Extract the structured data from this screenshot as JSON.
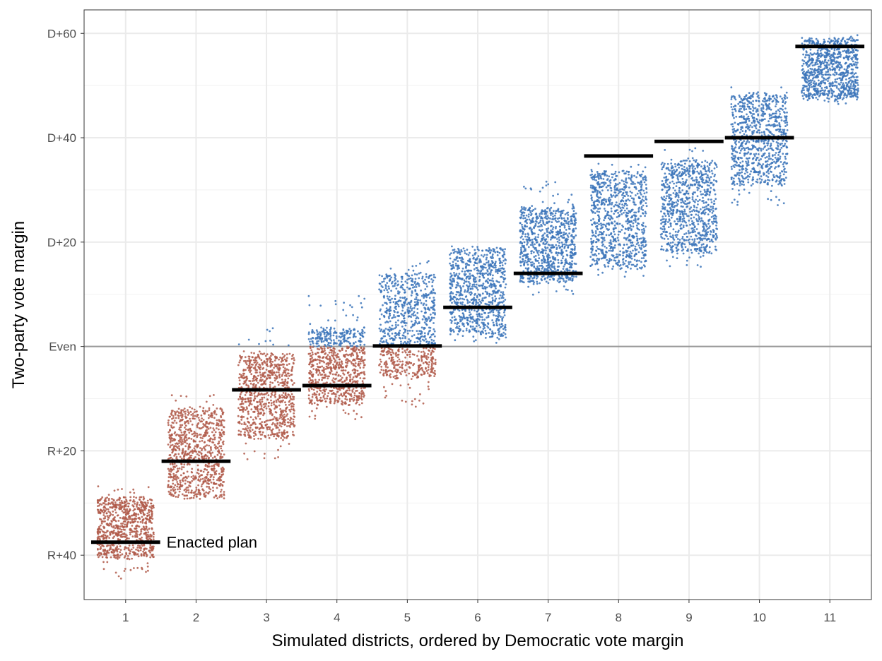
{
  "chart_data": {
    "type": "scatter",
    "xlabel": "Simulated districts, ordered by Democratic vote margin",
    "ylabel": "Two-party vote margin",
    "x_ticks": [
      "1",
      "2",
      "3",
      "4",
      "5",
      "6",
      "7",
      "8",
      "9",
      "10",
      "11"
    ],
    "y_ticks": [
      {
        "value": -40,
        "label": "R+40"
      },
      {
        "value": -20,
        "label": "R+20"
      },
      {
        "value": 0,
        "label": "Even"
      },
      {
        "value": 20,
        "label": "D+20"
      },
      {
        "value": 40,
        "label": "D+40"
      },
      {
        "value": 60,
        "label": "D+60"
      }
    ],
    "xlim": [
      0.41,
      11.59
    ],
    "ylim": [
      -48.5,
      64.5
    ],
    "grid": true,
    "reference_line": {
      "value": 0,
      "color": "#999999"
    },
    "colors": {
      "republican": "#B05A4A",
      "democratic": "#3B74BA",
      "enacted": "#000000"
    },
    "simulated_ranges": [
      {
        "district": 1,
        "min": -44.5,
        "max": -26.5,
        "dense_min": -40.5,
        "dense_max": -29.0
      },
      {
        "district": 2,
        "min": -29.5,
        "max": -9.0,
        "dense_min": -29.0,
        "dense_max": -12.0
      },
      {
        "district": 3,
        "min": -22.0,
        "max": 3.5,
        "dense_min": -17.5,
        "dense_max": -1.5
      },
      {
        "district": 4,
        "min": -14.0,
        "max": 9.5,
        "dense_min": -11.0,
        "dense_max": 3.5
      },
      {
        "district": 5,
        "min": -11.5,
        "max": 16.5,
        "dense_min": -6.0,
        "dense_max": 14.0
      },
      {
        "district": 6,
        "min": 0.5,
        "max": 19.0,
        "dense_min": 2.0,
        "dense_max": 19.0
      },
      {
        "district": 7,
        "min": 10.0,
        "max": 32.0,
        "dense_min": 12.5,
        "dense_max": 26.5
      },
      {
        "district": 8,
        "min": 12.5,
        "max": 35.0,
        "dense_min": 15.0,
        "dense_max": 33.5
      },
      {
        "district": 9,
        "min": 15.0,
        "max": 38.0,
        "dense_min": 18.0,
        "dense_max": 35.5
      },
      {
        "district": 10,
        "min": 27.0,
        "max": 49.5,
        "dense_min": 31.0,
        "dense_max": 48.5
      },
      {
        "district": 11,
        "min": 46.5,
        "max": 59.5,
        "dense_min": 47.5,
        "dense_max": 59.0
      }
    ],
    "enacted_plan": [
      {
        "district": 1,
        "margin": -37.5
      },
      {
        "district": 2,
        "margin": -22.0
      },
      {
        "district": 3,
        "margin": -8.3
      },
      {
        "district": 4,
        "margin": -7.5
      },
      {
        "district": 5,
        "margin": 0.1
      },
      {
        "district": 6,
        "margin": 7.5
      },
      {
        "district": 7,
        "margin": 14.0
      },
      {
        "district": 8,
        "margin": 36.5
      },
      {
        "district": 9,
        "margin": 39.3
      },
      {
        "district": 10,
        "margin": 40.0
      },
      {
        "district": 11,
        "margin": 57.5
      }
    ],
    "annotations": [
      {
        "text": "Enacted plan",
        "x": 1,
        "y": -37.5
      }
    ]
  }
}
